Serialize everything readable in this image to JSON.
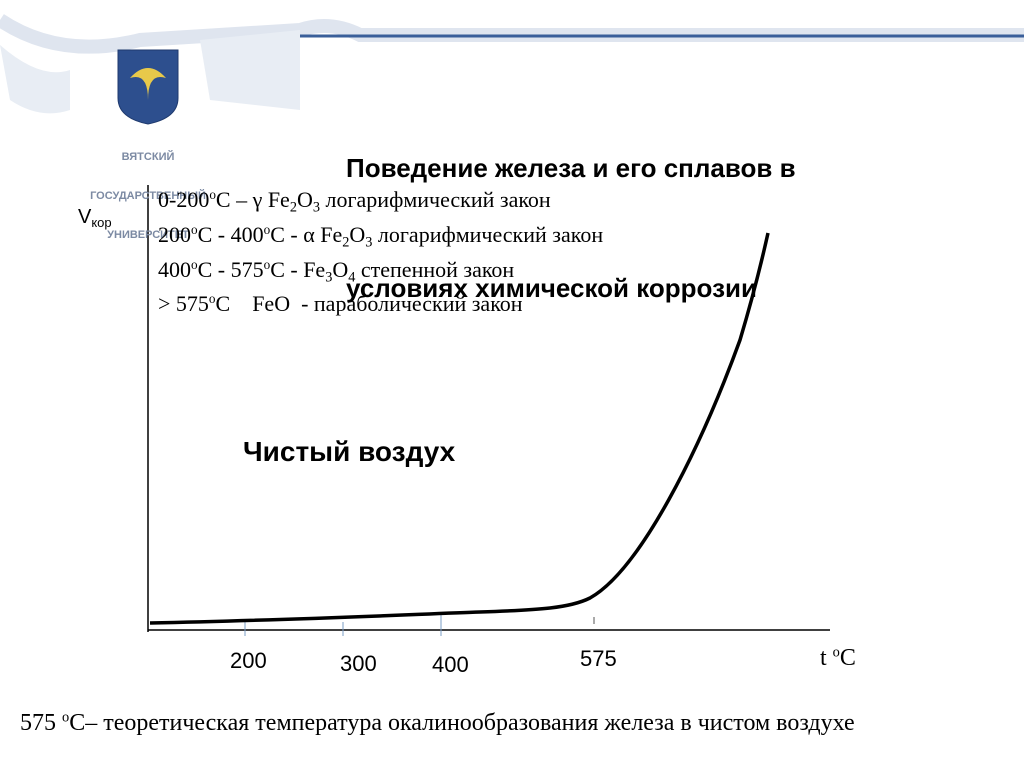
{
  "header": {
    "university": [
      "ВЯТСКИЙ",
      "ГОСУДАРСТВЕННЫЙ",
      "УНИВЕРСИТЕТ"
    ],
    "title": [
      "Поведение железа и его сплавов в",
      "условиях химической коррозии"
    ]
  },
  "diagram": {
    "y_label": [
      "V",
      "кор"
    ],
    "laws": [
      [
        "0-200",
        "o",
        "C – γ Fe",
        "2",
        "O",
        "3",
        " логарифмический закон"
      ],
      [
        "200",
        "o",
        "C - 400",
        "o",
        "C - α Fe",
        "2",
        "O",
        "3",
        " логарифмический закон"
      ],
      [
        "400",
        "o",
        "C - 575",
        "o",
        "C - Fe",
        "3",
        "O",
        "4",
        " степенной закон"
      ],
      [
        "> 575",
        "o",
        "C    FeO  - параболический закон"
      ]
    ],
    "annotation": "Чистый воздух",
    "x_ticks": [
      "200",
      "300",
      "400",
      "575"
    ],
    "x_label": [
      "t ",
      "o",
      "C"
    ]
  },
  "footnote": [
    "575 ",
    "o",
    "C– теоретическая температура окалинообразования железа в чистом воздухе"
  ]
}
